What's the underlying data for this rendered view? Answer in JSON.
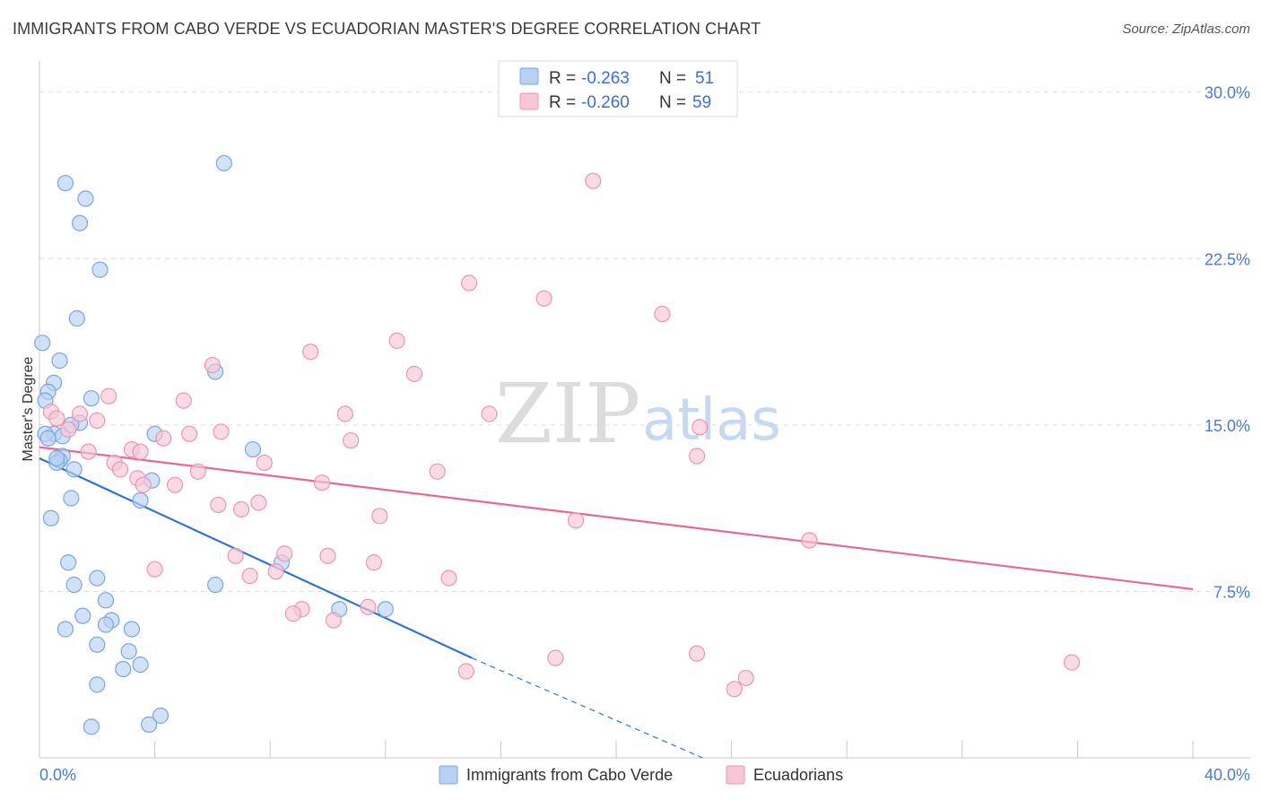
{
  "title": "IMMIGRANTS FROM CABO VERDE VS ECUADORIAN MASTER'S DEGREE CORRELATION CHART",
  "source": "Source: ZipAtlas.com",
  "watermark": {
    "zip": "ZIP",
    "atlas": "atlas"
  },
  "chart_data": {
    "type": "scatter",
    "title": "IMMIGRANTS FROM CABO VERDE VS ECUADORIAN MASTER'S DEGREE CORRELATION CHART",
    "xlabel": "",
    "ylabel": "Master's Degree",
    "xlim": [
      0,
      40
    ],
    "ylim": [
      0,
      31
    ],
    "x_tick_labels": [
      "0.0%",
      "40.0%"
    ],
    "y_ticks": [
      7.5,
      15.0,
      22.5,
      30.0
    ],
    "y_tick_labels": [
      "7.5%",
      "15.0%",
      "22.5%",
      "30.0%"
    ],
    "grid": true,
    "legend_position": "top-center",
    "colors": {
      "blue_fill": "#b8d1f3",
      "blue_stroke": "#7aa6e0",
      "blue_line": "#2e74d0",
      "pink_fill": "#f8c6d6",
      "pink_stroke": "#ec95b3",
      "pink_line": "#e8679a",
      "axis_text": "#4a7bd0",
      "grid": "#dddddd"
    },
    "legend": [
      {
        "r_label": "R = ",
        "r_value": "-0.263",
        "n_label": "N = ",
        "n_value": "51"
      },
      {
        "r_label": "R = ",
        "r_value": "-0.260",
        "n_label": "N = ",
        "n_value": "59"
      }
    ],
    "series": [
      {
        "name": "Immigrants from Cabo Verde",
        "color": "blue",
        "trend": {
          "x0": 0.0,
          "y0": 13.5,
          "x1": 15.0,
          "y1": 4.5,
          "dash_to_x": 23.0,
          "dash_to_y": 0.0
        },
        "points": [
          [
            6.4,
            26.8
          ],
          [
            0.9,
            25.9
          ],
          [
            1.6,
            25.2
          ],
          [
            1.4,
            24.1
          ],
          [
            2.1,
            22.0
          ],
          [
            1.3,
            19.8
          ],
          [
            0.1,
            18.7
          ],
          [
            0.7,
            17.9
          ],
          [
            6.1,
            17.4
          ],
          [
            0.5,
            16.9
          ],
          [
            0.3,
            16.5
          ],
          [
            0.2,
            16.1
          ],
          [
            1.8,
            16.2
          ],
          [
            1.4,
            15.1
          ],
          [
            0.5,
            14.6
          ],
          [
            4.0,
            14.6
          ],
          [
            0.2,
            14.6
          ],
          [
            0.8,
            14.5
          ],
          [
            7.4,
            13.9
          ],
          [
            0.8,
            13.6
          ],
          [
            0.7,
            13.4
          ],
          [
            0.6,
            13.3
          ],
          [
            1.2,
            13.0
          ],
          [
            3.9,
            12.5
          ],
          [
            1.1,
            11.7
          ],
          [
            3.5,
            11.6
          ],
          [
            0.4,
            10.8
          ],
          [
            8.4,
            8.8
          ],
          [
            1.0,
            8.8
          ],
          [
            2.0,
            8.1
          ],
          [
            1.2,
            7.8
          ],
          [
            6.1,
            7.8
          ],
          [
            2.3,
            7.1
          ],
          [
            10.4,
            6.7
          ],
          [
            12.0,
            6.7
          ],
          [
            1.5,
            6.4
          ],
          [
            2.5,
            6.2
          ],
          [
            2.3,
            6.0
          ],
          [
            3.2,
            5.8
          ],
          [
            0.9,
            5.8
          ],
          [
            2.0,
            5.1
          ],
          [
            3.1,
            4.8
          ],
          [
            3.5,
            4.2
          ],
          [
            2.9,
            4.0
          ],
          [
            2.0,
            3.3
          ],
          [
            4.2,
            1.9
          ],
          [
            3.8,
            1.5
          ],
          [
            1.8,
            1.4
          ],
          [
            0.3,
            14.4
          ],
          [
            0.6,
            13.5
          ],
          [
            1.1,
            15.0
          ]
        ]
      },
      {
        "name": "Ecuadorians",
        "color": "pink",
        "trend": {
          "x0": 0.0,
          "y0": 14.0,
          "x1": 40.0,
          "y1": 7.6
        },
        "points": [
          [
            19.2,
            26.0
          ],
          [
            14.9,
            21.4
          ],
          [
            17.5,
            20.7
          ],
          [
            21.6,
            20.0
          ],
          [
            12.4,
            18.8
          ],
          [
            9.4,
            18.3
          ],
          [
            6.0,
            17.7
          ],
          [
            13.0,
            17.3
          ],
          [
            2.4,
            16.3
          ],
          [
            5.0,
            16.1
          ],
          [
            0.4,
            15.6
          ],
          [
            1.4,
            15.5
          ],
          [
            10.6,
            15.5
          ],
          [
            15.6,
            15.5
          ],
          [
            0.6,
            15.3
          ],
          [
            2.0,
            15.2
          ],
          [
            22.9,
            14.9
          ],
          [
            1.0,
            14.8
          ],
          [
            6.3,
            14.7
          ],
          [
            5.2,
            14.6
          ],
          [
            4.3,
            14.4
          ],
          [
            10.8,
            14.3
          ],
          [
            3.2,
            13.9
          ],
          [
            1.7,
            13.8
          ],
          [
            22.8,
            13.6
          ],
          [
            7.8,
            13.3
          ],
          [
            2.6,
            13.3
          ],
          [
            2.8,
            13.0
          ],
          [
            5.5,
            12.9
          ],
          [
            13.8,
            12.9
          ],
          [
            3.4,
            12.6
          ],
          [
            3.6,
            12.3
          ],
          [
            4.7,
            12.3
          ],
          [
            9.8,
            12.4
          ],
          [
            7.6,
            11.5
          ],
          [
            6.2,
            11.4
          ],
          [
            7.0,
            11.2
          ],
          [
            11.8,
            10.9
          ],
          [
            18.6,
            10.7
          ],
          [
            26.7,
            9.8
          ],
          [
            8.5,
            9.2
          ],
          [
            6.8,
            9.1
          ],
          [
            10.0,
            9.1
          ],
          [
            11.6,
            8.8
          ],
          [
            4.0,
            8.5
          ],
          [
            8.2,
            8.4
          ],
          [
            7.3,
            8.2
          ],
          [
            14.2,
            8.1
          ],
          [
            11.4,
            6.8
          ],
          [
            9.1,
            6.7
          ],
          [
            8.8,
            6.5
          ],
          [
            10.2,
            6.2
          ],
          [
            17.9,
            4.5
          ],
          [
            22.8,
            4.7
          ],
          [
            14.8,
            3.9
          ],
          [
            24.5,
            3.6
          ],
          [
            24.1,
            3.1
          ],
          [
            35.8,
            4.3
          ],
          [
            3.5,
            13.8
          ]
        ]
      }
    ],
    "bottom_legend": [
      "Immigrants from Cabo Verde",
      "Ecuadorians"
    ]
  }
}
